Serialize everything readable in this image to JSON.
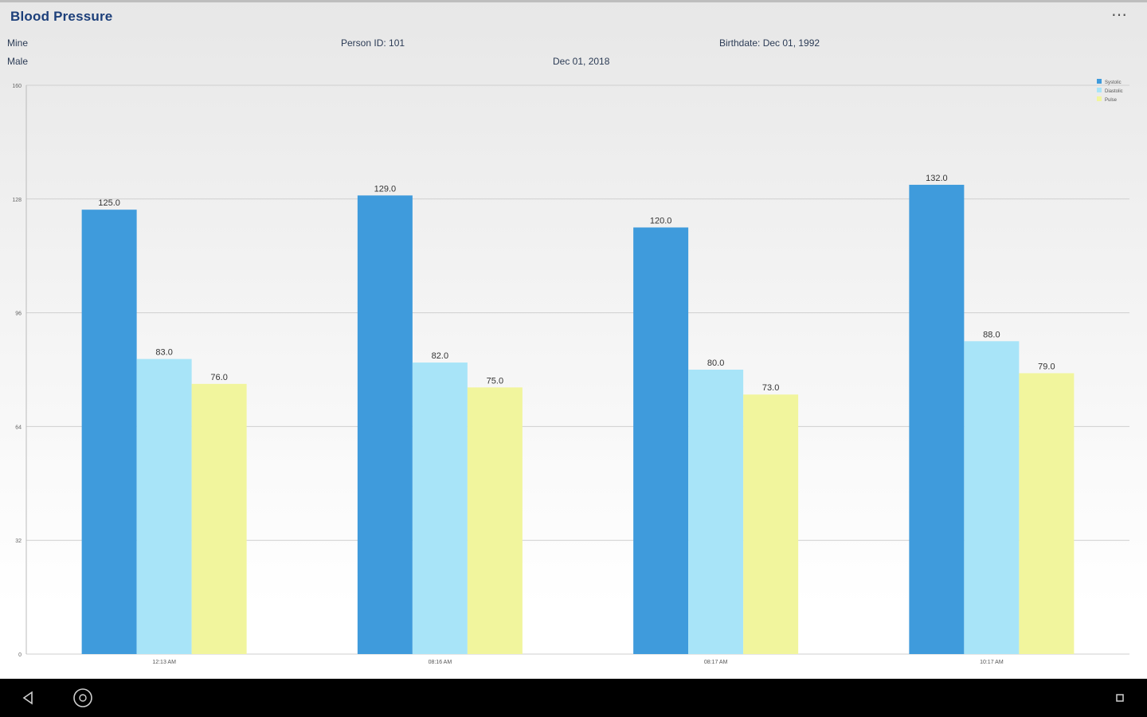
{
  "app": {
    "title": "Blood Pressure",
    "menu_icon": "more-dots-icon"
  },
  "patient": {
    "name": "Mine",
    "gender": "Male",
    "person_id": "Person ID: 101",
    "birthdate": "Birthdate: Dec 01, 1992",
    "date": "Dec 01, 2018"
  },
  "chart_data": {
    "type": "bar",
    "categories": [
      "12:13 AM",
      "08:16 AM",
      "08:17 AM",
      "10:17 AM"
    ],
    "series": [
      {
        "name": "Systolic",
        "values": [
          125.0,
          129.0,
          120.0,
          132.0
        ],
        "color": "#3f9bdc"
      },
      {
        "name": "Diastolic",
        "values": [
          83.0,
          82.0,
          80.0,
          88.0
        ],
        "color": "#a8e4f8"
      },
      {
        "name": "Pulse",
        "values": [
          76.0,
          75.0,
          73.0,
          79.0
        ],
        "color": "#f1f59d"
      }
    ],
    "ylim": [
      0,
      160
    ],
    "yticks": [
      "0",
      "32",
      "64",
      "96",
      "128",
      "160"
    ],
    "value_labels": true,
    "grid": true,
    "legend": "top-right"
  },
  "navbar": {
    "back_icon": "back-triangle-icon",
    "home_icon": "home-circle-icon",
    "recents_icon": "recents-square-icon"
  }
}
